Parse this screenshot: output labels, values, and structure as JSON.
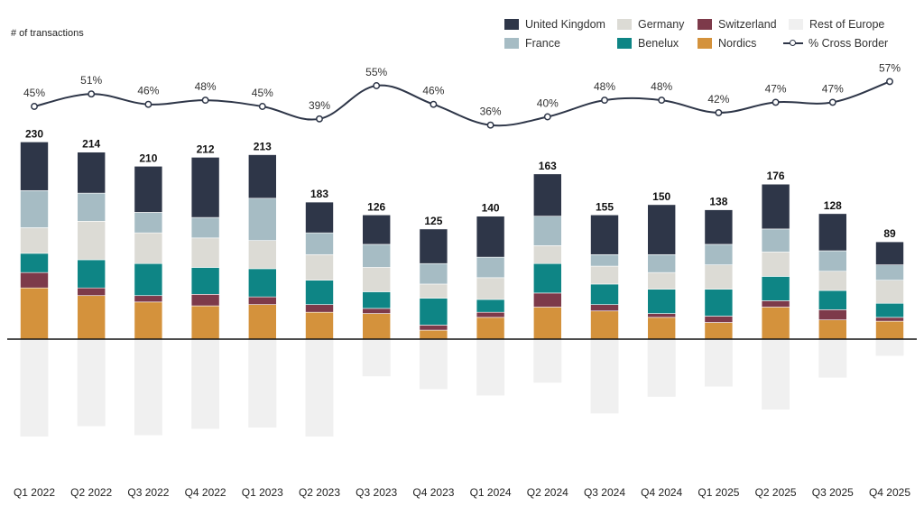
{
  "chart_data": {
    "type": "bar",
    "stacked": true,
    "title": "",
    "ylabel": "# of transactions",
    "xlabel": "",
    "grid": false,
    "legend_position": "top-right",
    "categories": [
      "Q1 2022",
      "Q2 2022",
      "Q3 2022",
      "Q4 2022",
      "Q1 2023",
      "Q2 2023",
      "Q3 2023",
      "Q4 2023",
      "Q1 2024",
      "Q2 2024",
      "Q3 2024",
      "Q4 2024",
      "Q1 2025",
      "Q2 2025",
      "Q3 2025",
      "Q4 2025"
    ],
    "totals": [
      230,
      214,
      210,
      212,
      213,
      183,
      126,
      125,
      140,
      163,
      155,
      150,
      138,
      176,
      128,
      89
    ],
    "series": [
      {
        "name": "Nordics",
        "color": "#d4923c",
        "values": [
          40,
          34,
          29,
          26,
          27,
          21,
          20,
          7,
          17,
          25,
          22,
          17,
          13,
          25,
          15,
          14
        ]
      },
      {
        "name": "Switzerland",
        "color": "#7d3a4a",
        "values": [
          12,
          6,
          5,
          9,
          6,
          6,
          4,
          4,
          4,
          11,
          5,
          3,
          5,
          5,
          8,
          3
        ]
      },
      {
        "name": "Benelux",
        "color": "#0e8585",
        "values": [
          15,
          22,
          25,
          21,
          22,
          19,
          13,
          21,
          10,
          23,
          16,
          19,
          21,
          19,
          15,
          11
        ]
      },
      {
        "name": "Germany",
        "color": "#dcdbd5",
        "values": [
          20,
          30,
          24,
          23,
          22,
          20,
          19,
          11,
          17,
          14,
          14,
          13,
          19,
          19,
          15,
          18
        ]
      },
      {
        "name": "France",
        "color": "#a6bcc4",
        "values": [
          29,
          22,
          16,
          16,
          33,
          17,
          18,
          16,
          16,
          23,
          9,
          14,
          16,
          18,
          16,
          12
        ]
      },
      {
        "name": "United Kingdom",
        "color": "#2e3648",
        "values": [
          38,
          32,
          36,
          47,
          34,
          24,
          23,
          27,
          32,
          33,
          31,
          39,
          27,
          35,
          29,
          18
        ]
      },
      {
        "name": "Rest of Europe",
        "color": "#f0f0f0",
        "plotted_below_axis": true,
        "values": [
          76,
          68,
          75,
          70,
          69,
          76,
          29,
          39,
          44,
          34,
          58,
          45,
          37,
          55,
          30,
          13
        ]
      }
    ],
    "line_series": {
      "name": "% Cross Border",
      "color": "#2e3648",
      "values": [
        45,
        51,
        46,
        48,
        45,
        39,
        55,
        46,
        36,
        40,
        48,
        48,
        42,
        47,
        47,
        57
      ],
      "labels": [
        "45%",
        "51%",
        "46%",
        "48%",
        "45%",
        "39%",
        "55%",
        "46%",
        "36%",
        "40%",
        "48%",
        "48%",
        "42%",
        "47%",
        "47%",
        "57%"
      ]
    }
  },
  "legend": {
    "items": [
      {
        "label": "United Kingdom",
        "color": "#2e3648",
        "kind": "swatch"
      },
      {
        "label": "Germany",
        "color": "#dcdbd5",
        "kind": "swatch"
      },
      {
        "label": "Switzerland",
        "color": "#7d3a4a",
        "kind": "swatch"
      },
      {
        "label": "Rest of Europe",
        "color": "#f0f0f0",
        "kind": "swatch"
      },
      {
        "label": "France",
        "color": "#a6bcc4",
        "kind": "swatch"
      },
      {
        "label": "Benelux",
        "color": "#0e8585",
        "kind": "swatch"
      },
      {
        "label": "Nordics",
        "color": "#d4923c",
        "kind": "swatch"
      },
      {
        "label": "% Cross Border",
        "color": "#2e3648",
        "kind": "line-marker"
      }
    ]
  }
}
